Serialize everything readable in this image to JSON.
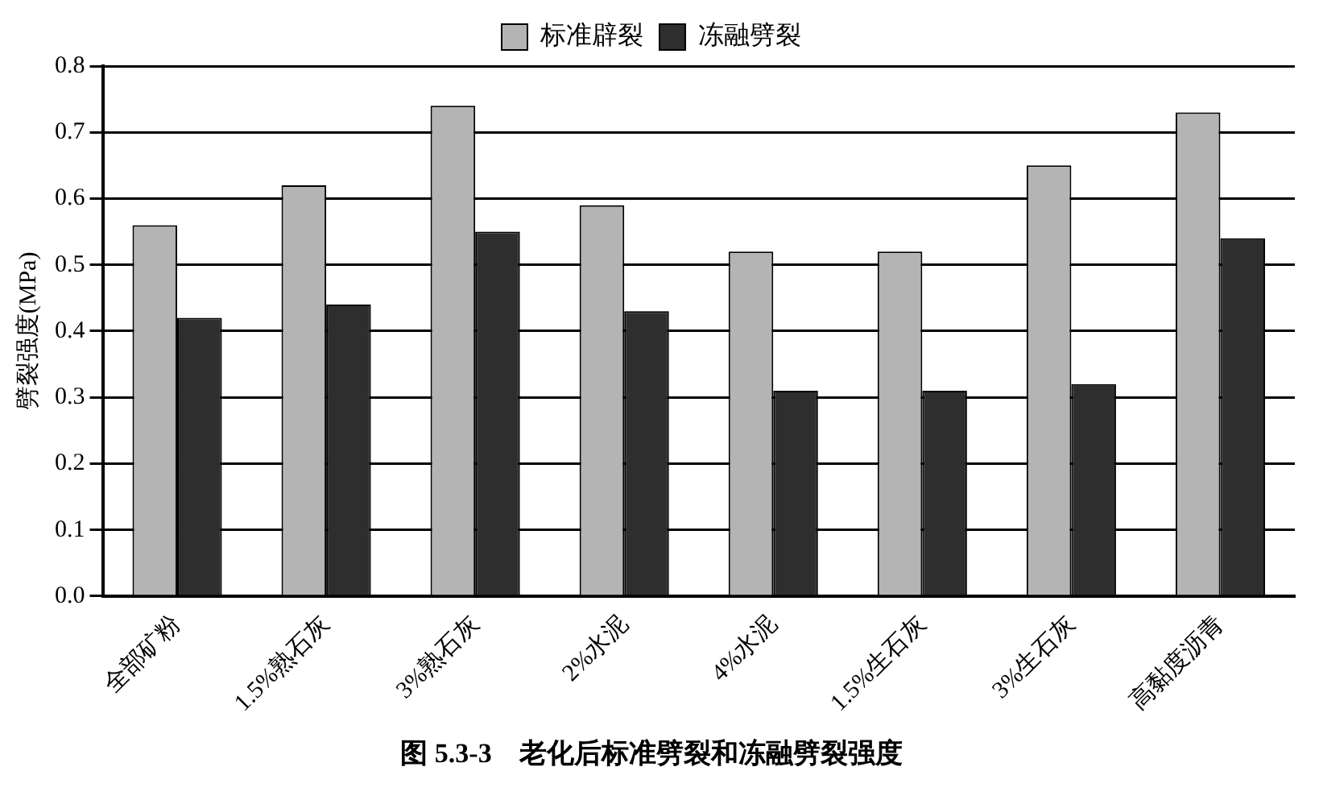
{
  "chart_data": {
    "type": "bar",
    "title": "图 5.3-3　老化后标准劈裂和冻融劈裂强度",
    "ylabel": "劈裂强度(MPa)",
    "categories": [
      "全部矿粉",
      "1.5%熟石灰",
      "3%熟石灰",
      "2%水泥",
      "4%水泥",
      "1.5%生石灰",
      "3%生石灰",
      "高黏度沥青"
    ],
    "series": [
      {
        "name": "标准辟裂",
        "color": "#b4b4b4",
        "values": [
          0.56,
          0.62,
          0.74,
          0.59,
          0.52,
          0.52,
          0.65,
          0.73
        ]
      },
      {
        "name": "冻融劈裂",
        "color": "#2e2e2e",
        "values": [
          0.42,
          0.44,
          0.55,
          0.43,
          0.31,
          0.31,
          0.32,
          0.54
        ]
      }
    ],
    "ylim": [
      0,
      0.8
    ],
    "yticks": [
      "0.0",
      0.1,
      0.2,
      0.3,
      0.4,
      0.5,
      0.6,
      0.7,
      0.8
    ],
    "grid": "y",
    "legend": "top"
  }
}
